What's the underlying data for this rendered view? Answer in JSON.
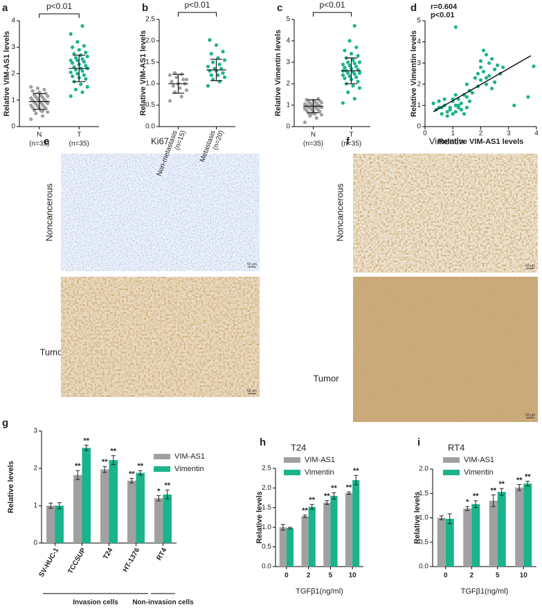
{
  "chart_data": [
    {
      "type": "dotplot",
      "panel": "a",
      "ylabel": "Relative VIM-AS1 levels",
      "bracket_label": "p<0.01",
      "ylim": [
        0,
        4
      ],
      "yticks": [
        0,
        1,
        2,
        3,
        4
      ],
      "groups": [
        {
          "name": "N",
          "n_label": "(n=35)",
          "color": "#a0a0a0",
          "mean": 0.95,
          "sd": 0.3,
          "values": [
            0.28,
            0.4,
            0.5,
            0.55,
            0.6,
            0.62,
            0.68,
            0.7,
            0.72,
            0.75,
            0.78,
            0.8,
            0.82,
            0.85,
            0.88,
            0.9,
            0.92,
            0.95,
            0.97,
            1.0,
            1.02,
            1.05,
            1.08,
            1.1,
            1.12,
            1.15,
            1.18,
            1.2,
            1.25,
            1.3,
            1.35,
            1.4,
            1.45,
            1.5,
            0.58
          ]
        },
        {
          "name": "T",
          "n_label": "(n=35)",
          "color": "#1ab38b",
          "mean": 2.2,
          "sd": 0.5,
          "values": [
            1.15,
            1.3,
            1.4,
            1.5,
            1.6,
            1.7,
            1.8,
            1.85,
            1.9,
            1.95,
            2.0,
            2.05,
            2.1,
            2.15,
            2.2,
            2.2,
            2.25,
            2.3,
            2.35,
            2.4,
            2.45,
            2.5,
            2.5,
            2.55,
            2.6,
            2.65,
            2.7,
            2.75,
            2.8,
            2.9,
            3.0,
            3.05,
            3.2,
            3.5,
            3.8
          ]
        }
      ]
    },
    {
      "type": "dotplot",
      "panel": "b",
      "ylabel": "Relative VIM-AS1 levels",
      "bracket_label": "p<0.01",
      "ylim": [
        0,
        2.5
      ],
      "yticks": [
        {
          "value": 0,
          "label": "0.0"
        },
        0.5,
        {
          "value": 1,
          "label": "1.0"
        },
        1.5,
        {
          "value": 2,
          "label": "2.0"
        },
        2.5
      ],
      "groups": [
        {
          "name": "Non-metastasis",
          "n_label": "(n=15)",
          "color": "#a0a0a0",
          "mean": 1.0,
          "sd": 0.22,
          "values": [
            0.6,
            0.7,
            0.8,
            0.85,
            0.9,
            0.95,
            1.0,
            1.0,
            1.05,
            1.1,
            1.15,
            1.2,
            1.22,
            1.25,
            1.1
          ]
        },
        {
          "name": "Metastasis",
          "n_label": "(n=20)",
          "color": "#1ab38b",
          "mean": 1.32,
          "sd": 0.25,
          "values": [
            0.95,
            1.05,
            1.1,
            1.15,
            1.2,
            1.2,
            1.25,
            1.3,
            1.3,
            1.35,
            1.35,
            1.4,
            1.45,
            1.5,
            1.55,
            1.6,
            1.7,
            1.75,
            1.9,
            2.02
          ]
        }
      ]
    },
    {
      "type": "dotplot",
      "panel": "c",
      "ylabel": "Relative Vimentin levels",
      "bracket_label": "p<0.01",
      "ylim": [
        0,
        5
      ],
      "yticks": [
        0,
        1,
        2,
        3,
        4,
        5
      ],
      "groups": [
        {
          "name": "N",
          "n_label": "(n=35)",
          "color": "#a0a0a0",
          "mean": 0.95,
          "sd": 0.3,
          "values": [
            0.2,
            0.4,
            0.5,
            0.55,
            0.6,
            0.65,
            0.7,
            0.72,
            0.75,
            0.78,
            0.8,
            0.82,
            0.85,
            0.88,
            0.9,
            0.9,
            0.92,
            0.95,
            0.97,
            1.0,
            1.0,
            1.02,
            1.05,
            1.08,
            1.1,
            1.12,
            1.15,
            1.18,
            1.2,
            1.22,
            1.25,
            1.3,
            0.6,
            0.85,
            0.95
          ]
        },
        {
          "name": "T",
          "n_label": "(n=35)",
          "color": "#1ab38b",
          "mean": 2.6,
          "sd": 0.6,
          "values": [
            1.1,
            1.3,
            1.6,
            1.8,
            1.9,
            2.0,
            2.1,
            2.2,
            2.25,
            2.3,
            2.35,
            2.4,
            2.45,
            2.5,
            2.5,
            2.55,
            2.6,
            2.65,
            2.7,
            2.75,
            2.8,
            2.85,
            2.9,
            2.95,
            3.0,
            3.0,
            3.1,
            3.2,
            3.3,
            3.4,
            3.55,
            3.7,
            4.0,
            2.6,
            4.7
          ]
        }
      ]
    },
    {
      "type": "scatter",
      "panel": "d",
      "xlabel": "Relative VIM-AS1 levels",
      "ylabel": "Relative Vimentin levels",
      "annotations": [
        "r=0.604",
        "p<0.01"
      ],
      "color": "#1ab38b",
      "xlim": [
        0,
        4
      ],
      "xticks": [
        0,
        1,
        2,
        3,
        4
      ],
      "ylim": [
        0,
        5
      ],
      "yticks": [
        0,
        1,
        2,
        3,
        4,
        5
      ],
      "x": [
        0.3,
        0.4,
        0.5,
        0.6,
        0.7,
        0.8,
        0.9,
        1.0,
        1.0,
        1.1,
        1.1,
        1.2,
        1.2,
        1.3,
        1.3,
        1.4,
        1.4,
        1.5,
        1.5,
        1.6,
        0.6,
        0.8,
        0.9,
        1.0,
        1.2,
        1.3,
        0.5,
        0.7,
        1.1,
        1.5,
        1.7,
        1.8,
        1.9,
        2.0,
        2.0,
        2.1,
        2.1,
        2.2,
        2.2,
        2.3,
        2.3,
        2.4,
        2.5,
        2.5,
        2.6,
        2.7,
        2.8,
        1.9,
        2.2,
        2.4,
        2.0,
        1.6,
        3.2,
        3.7,
        1.1,
        3.9
      ],
      "y": [
        1.1,
        0.8,
        1.2,
        0.9,
        1.0,
        0.7,
        0.8,
        1.2,
        0.6,
        1.0,
        0.7,
        0.9,
        1.3,
        0.8,
        1.1,
        0.6,
        1.5,
        0.9,
        1.4,
        1.2,
        0.6,
        0.5,
        0.9,
        1.3,
        1.0,
        0.8,
        0.9,
        1.3,
        1.5,
        2.0,
        1.6,
        2.3,
        2.5,
        2.8,
        2.2,
        3.6,
        2.6,
        3.4,
        2.0,
        3.0,
        2.4,
        3.2,
        2.7,
        2.1,
        2.9,
        2.5,
        2.8,
        1.9,
        2.3,
        1.8,
        3.1,
        1.7,
        1.0,
        1.4,
        4.7,
        2.85
      ],
      "trendline": {
        "x": [
          0.3,
          3.8
        ],
        "y": [
          0.7,
          3.35
        ]
      }
    },
    {
      "type": "bar",
      "panel": "g",
      "ylabel": "Relative levels",
      "ylim": [
        0,
        3
      ],
      "yticks": [
        0,
        1,
        2,
        3
      ],
      "categories": [
        "SV-HUC-1",
        "TCCSUP",
        "T24",
        "HT-1376",
        "RT4"
      ],
      "category_groups": [
        "Invasion cells",
        "Non-invasion cells"
      ],
      "series": [
        {
          "name": "VIM-AS1",
          "color": "#a0a0a0",
          "values": [
            1.0,
            1.82,
            1.97,
            1.67,
            1.2
          ],
          "errors": [
            0.07,
            0.12,
            0.08,
            0.06,
            0.07
          ],
          "significance": [
            null,
            "**",
            "**",
            "**",
            "*"
          ]
        },
        {
          "name": "Vimentin",
          "color": "#1ab38b",
          "values": [
            1.0,
            2.55,
            2.22,
            1.88,
            1.3
          ],
          "errors": [
            0.08,
            0.07,
            0.12,
            0.06,
            0.12
          ],
          "significance": [
            null,
            "**",
            "**",
            "**",
            "**"
          ]
        }
      ]
    },
    {
      "type": "bar",
      "panel": "h",
      "title": "T24",
      "ylabel": "Relative levels",
      "xlabel": "TGFβ1(ng/ml)",
      "ylim": [
        0,
        2.5
      ],
      "yticks": [
        {
          "value": 0,
          "label": "0.0"
        },
        0.5,
        {
          "value": 1,
          "label": "1.0"
        },
        1.5,
        {
          "value": 2,
          "label": "2.0"
        },
        2.5
      ],
      "categories": [
        "0",
        "2",
        "5",
        "10"
      ],
      "series": [
        {
          "name": "VIM-AS1",
          "color": "#a0a0a0",
          "values": [
            1.0,
            1.28,
            1.63,
            1.87
          ],
          "errors": [
            0.07,
            0.03,
            0.05,
            0.03
          ],
          "significance": [
            null,
            "**",
            "**",
            "**"
          ]
        },
        {
          "name": "Vimentin",
          "color": "#1ab38b",
          "values": [
            0.98,
            1.52,
            1.8,
            2.2
          ],
          "errors": [
            0.02,
            0.06,
            0.08,
            0.12
          ],
          "significance": [
            null,
            "**",
            "**",
            "**"
          ]
        }
      ]
    },
    {
      "type": "bar",
      "panel": "i",
      "title": "RT4",
      "ylabel": "Relative levels",
      "xlabel": "TGFβ1(ng/ml)",
      "ylim": [
        0,
        2
      ],
      "yticks": [
        {
          "value": 0,
          "label": "0.0"
        },
        0.5,
        {
          "value": 1,
          "label": "1.0"
        },
        1.5,
        {
          "value": 2,
          "label": "2.0"
        }
      ],
      "categories": [
        "0",
        "2",
        "5",
        "10"
      ],
      "series": [
        {
          "name": "VIM-AS1",
          "color": "#a0a0a0",
          "values": [
            1.0,
            1.19,
            1.35,
            1.62
          ],
          "errors": [
            0.04,
            0.04,
            0.12,
            0.06
          ],
          "significance": [
            null,
            "*",
            "**",
            "**"
          ]
        },
        {
          "name": "Vimentin",
          "color": "#1ab38b",
          "values": [
            0.98,
            1.28,
            1.53,
            1.7
          ],
          "errors": [
            0.1,
            0.07,
            0.07,
            0.05
          ],
          "significance": [
            null,
            "**",
            "**",
            "**"
          ]
        }
      ]
    }
  ],
  "ihc": [
    {
      "panel": "e",
      "title": "Ki67",
      "rows": [
        "Noncancerous",
        "Tumor"
      ],
      "scale_bar": "50 μm"
    },
    {
      "panel": "f",
      "title": "Vimentin",
      "rows": [
        "Noncancerous",
        "Tumor"
      ],
      "scale_bar": "50 μm"
    }
  ]
}
